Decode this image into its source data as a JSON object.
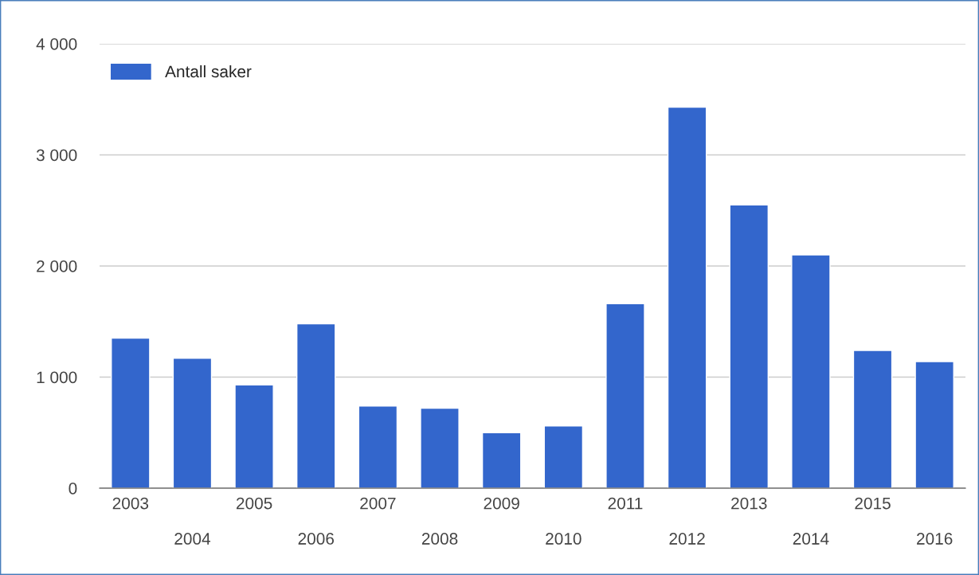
{
  "chart_data": {
    "type": "bar",
    "categories": [
      "2003",
      "2004",
      "2005",
      "2006",
      "2007",
      "2008",
      "2009",
      "2010",
      "2011",
      "2012",
      "2013",
      "2014",
      "2015",
      "2016"
    ],
    "series": [
      {
        "name": "Antall saker",
        "color": "#3366cc",
        "values": [
          1350,
          1170,
          930,
          1480,
          740,
          720,
          500,
          560,
          1660,
          3430,
          2550,
          2100,
          1240,
          1140
        ]
      }
    ],
    "ylim": [
      0,
      4000
    ],
    "yticks": [
      {
        "value": 0,
        "label": "0"
      },
      {
        "value": 1000,
        "label": "1 000"
      },
      {
        "value": 2000,
        "label": "2 000"
      },
      {
        "value": 3000,
        "label": "3 000"
      },
      {
        "value": 4000,
        "label": "4 000"
      }
    ],
    "grid": "y",
    "legend": "top left"
  }
}
